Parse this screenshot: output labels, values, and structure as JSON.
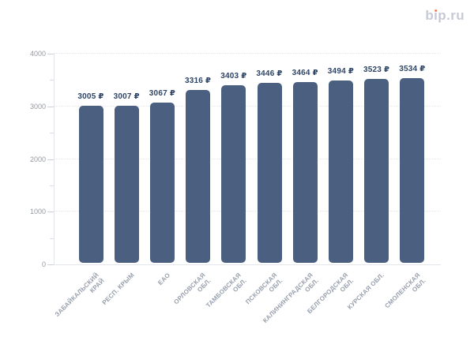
{
  "logo": {
    "text": "bip.ru",
    "text_color": "#c6cad7",
    "dot_color": "#f0785a"
  },
  "chart_data": {
    "type": "bar",
    "title": "",
    "xlabel": "",
    "ylabel": "",
    "legend": "none",
    "grid": "horizontal dotted lines at major y ticks",
    "categories": [
      "ЗАБАЙКАЛЬСКИЙ КРАЙ",
      "РЕСП. КРЫМ",
      "ЕАО",
      "ОРЛОВСКАЯ ОБЛ.",
      "ТАМБОВСКАЯ ОБЛ.",
      "ПСКОВСКАЯ ОБЛ.",
      "КАЛИНИНГРАДСКАЯ ОБЛ.",
      "БЕЛГОРОДСКАЯ ОБЛ.",
      "КУРСКАЯ ОБЛ.",
      "СМОЛЕНСКАЯ ОБЛ."
    ],
    "category_display": [
      "ЗАБАЙКАЛЬСКИЙ\nКРАЙ",
      "РЕСП. КРЫМ",
      "ЕАО",
      "ОРЛОВСКАЯ\nОБЛ.",
      "ТАМБОВСКАЯ\nОБЛ.",
      "ПСКОВСКАЯ\nОБЛ.",
      "КАЛИНИНГРАДСКАЯ\nОБЛ.",
      "БЕЛГОРОДСКАЯ\nОБЛ.",
      "КУРСКАЯ ОБЛ.",
      "СМОЛЕНСКАЯ\nОБЛ."
    ],
    "values": [
      3005,
      3007,
      3067,
      3316,
      3403,
      3446,
      3464,
      3494,
      3523,
      3534
    ],
    "value_labels": [
      "3005 ₽",
      "3007 ₽",
      "3067 ₽",
      "3316 ₽",
      "3403 ₽",
      "3446 ₽",
      "3464 ₽",
      "3494 ₽",
      "3523 ₽",
      "3534 ₽"
    ],
    "currency": "₽",
    "ylim": [
      0,
      4000
    ],
    "yticks": [
      0,
      1000,
      2000,
      3000,
      4000
    ],
    "ytick_labels": [
      "0",
      "1000",
      "2000",
      "3000",
      "4000"
    ],
    "minor_yticks": [
      500,
      1500,
      2500,
      3500
    ],
    "bar_color": "#4b5f80",
    "value_label_color": "#2f4566",
    "ytick_label_color": "#9599a3",
    "xtick_label_color": "#98a0ad",
    "grid_color": "#e3e6ec"
  }
}
